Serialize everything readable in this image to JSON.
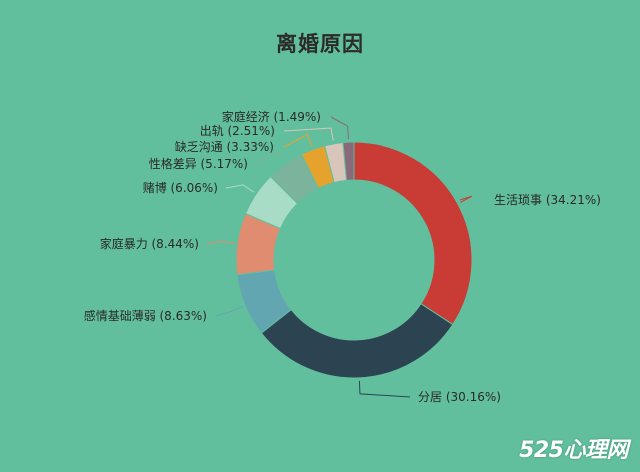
{
  "colors": {
    "background": "#62bf9e"
  },
  "chart_data": {
    "type": "pie",
    "style": "donut",
    "title": "离婚原因",
    "slices": [
      {
        "name": "生活琐事",
        "label": "生活琐事 (34.21%)",
        "value": 34.21,
        "color": "#c93b35"
      },
      {
        "name": "分居",
        "label": "分居 (30.16%)",
        "value": 30.16,
        "color": "#2c4451"
      },
      {
        "name": "感情基础薄弱",
        "label": "感情基础薄弱 (8.63%)",
        "value": 8.63,
        "color": "#62a6b2"
      },
      {
        "name": "家庭暴力",
        "label": "家庭暴力 (8.44%)",
        "value": 8.44,
        "color": "#e08c71"
      },
      {
        "name": "赌博",
        "label": "赌博 (6.06%)",
        "value": 6.06,
        "color": "#a9dcc7"
      },
      {
        "name": "性格差异",
        "label": "性格差异 (5.17%)",
        "value": 5.17,
        "color": "#7bb39c"
      },
      {
        "name": "缺乏沟通",
        "label": "缺乏沟通 (3.33%)",
        "value": 3.33,
        "color": "#e5a22c"
      },
      {
        "name": "出轨",
        "label": "出轨 (2.51%)",
        "value": 2.51,
        "color": "#d8c6bb"
      },
      {
        "name": "家庭经济",
        "label": "家庭经济 (1.49%)",
        "value": 1.49,
        "color": "#8a6a7a"
      }
    ]
  },
  "watermark": "525心理网"
}
